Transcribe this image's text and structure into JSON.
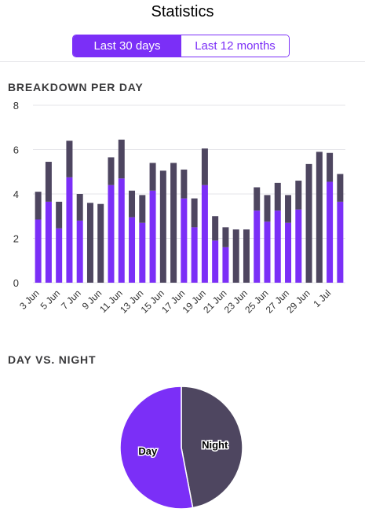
{
  "header": {
    "title": "Statistics"
  },
  "segmented_control": {
    "options": [
      "Last 30 days",
      "Last 12 months"
    ],
    "selected": "Last 30 days"
  },
  "sections": {
    "breakdown_title": "BREAKDOWN PER DAY",
    "day_night_title": "DAY VS. NIGHT"
  },
  "colors": {
    "accent": "#7b2ff7",
    "night": "#4e4660",
    "grid": "#e4e4e8"
  },
  "chart_data": [
    {
      "type": "bar",
      "stacked": true,
      "categories": [
        "3 Jun",
        "4 Jun",
        "5 Jun",
        "6 Jun",
        "7 Jun",
        "8 Jun",
        "9 Jun",
        "10 Jun",
        "11 Jun",
        "12 Jun",
        "13 Jun",
        "14 Jun",
        "15 Jun",
        "16 Jun",
        "17 Jun",
        "18 Jun",
        "19 Jun",
        "20 Jun",
        "21 Jun",
        "22 Jun",
        "23 Jun",
        "24 Jun",
        "25 Jun",
        "26 Jun",
        "27 Jun",
        "28 Jun",
        "29 Jun",
        "30 Jun",
        "1 Jul",
        "2 Jul"
      ],
      "xtick_labels": [
        "3 Jun",
        "5 Jun",
        "7 Jun",
        "9 Jun",
        "11 Jun",
        "13 Jun",
        "15 Jun",
        "17 Jun",
        "19 Jun",
        "21 Jun",
        "23 Jun",
        "25 Jun",
        "27 Jun",
        "29 Jun",
        "1 Jul"
      ],
      "series": [
        {
          "color": "#7b2ff7",
          "values": [
            2.85,
            3.65,
            2.45,
            4.75,
            2.8,
            0,
            0,
            4.4,
            4.7,
            2.95,
            2.7,
            4.15,
            0,
            0,
            3.8,
            2.5,
            4.4,
            1.9,
            1.6,
            0,
            0,
            3.25,
            2.75,
            3.25,
            2.7,
            3.3,
            0,
            0,
            4.55,
            3.65
          ]
        },
        {
          "color": "#4e4660",
          "values": [
            1.25,
            1.8,
            1.2,
            1.65,
            1.2,
            3.6,
            3.55,
            1.25,
            1.75,
            1.2,
            1.25,
            1.25,
            5.05,
            5.4,
            1.3,
            1.3,
            1.65,
            1.1,
            0.9,
            2.4,
            2.4,
            1.05,
            1.2,
            1.25,
            1.25,
            1.3,
            5.35,
            5.9,
            1.3,
            1.25
          ]
        }
      ],
      "ylim": [
        0,
        8
      ],
      "yticks": [
        0,
        2,
        4,
        6,
        8
      ],
      "grid": true
    },
    {
      "type": "pie",
      "labels": [
        "Day",
        "Night"
      ],
      "values": [
        53,
        47
      ],
      "colors": [
        "#7b2ff7",
        "#4e4660"
      ]
    }
  ]
}
